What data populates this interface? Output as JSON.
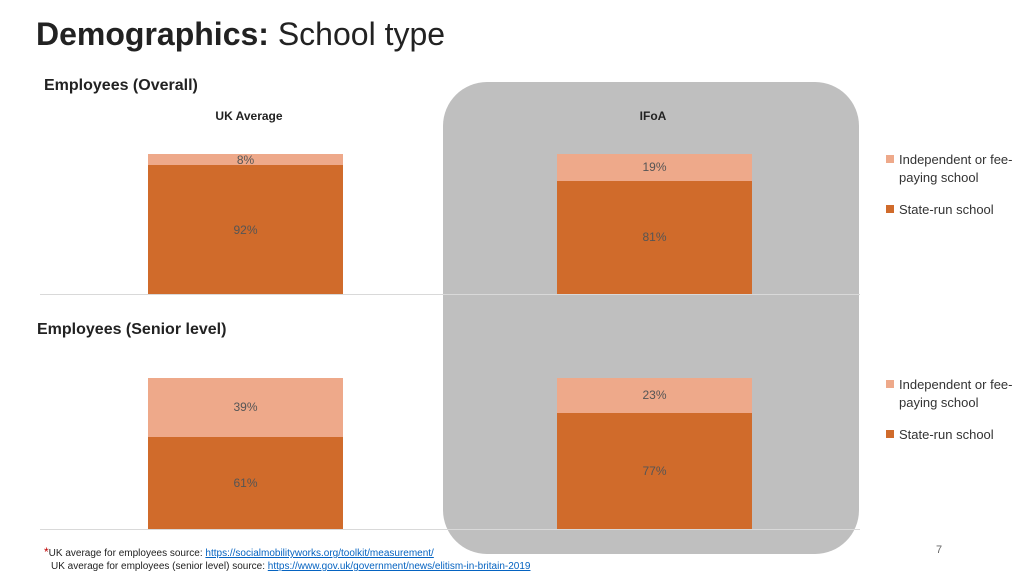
{
  "slide": {
    "title_bold": "Demographics:",
    "title_rest": "School type",
    "page_number": "7"
  },
  "chart_data": [
    {
      "type": "bar",
      "stacked": true,
      "title": "Employees (Overall)",
      "categories": [
        "UK Average",
        "IFoA"
      ],
      "series": [
        {
          "name": "State-run school",
          "values": [
            92,
            81
          ],
          "labels": [
            "92%",
            "81%"
          ],
          "color": "#d06b2b"
        },
        {
          "name": "Independent or fee-paying school",
          "values": [
            8,
            19
          ],
          "labels": [
            "8%",
            "19%"
          ],
          "color": "#eea98a"
        }
      ],
      "legend": [
        "Independent or fee-paying school",
        "State-run school"
      ],
      "ylim": [
        0,
        100
      ]
    },
    {
      "type": "bar",
      "stacked": true,
      "title": "Employees (Senior level)",
      "categories": [
        "UK Average",
        "IFoA"
      ],
      "series": [
        {
          "name": "State-run school",
          "values": [
            61,
            77
          ],
          "labels": [
            "61%",
            "77%"
          ],
          "color": "#d06b2b"
        },
        {
          "name": "Independent or fee-paying school",
          "values": [
            39,
            23
          ],
          "labels": [
            "39%",
            "23%"
          ],
          "color": "#eea98a"
        }
      ],
      "legend": [
        "Independent or fee-paying school",
        "State-run school"
      ],
      "ylim": [
        0,
        100
      ]
    }
  ],
  "footnote": {
    "marker": "*",
    "line1_text": "UK average for employees source: ",
    "line1_link": "https://socialmobilityworks.org/toolkit/measurement/",
    "line2_text": "UK average for employees (senior level) source: ",
    "line2_link": "https://www.gov.uk/government/news/elitism-in-britain-2019"
  }
}
